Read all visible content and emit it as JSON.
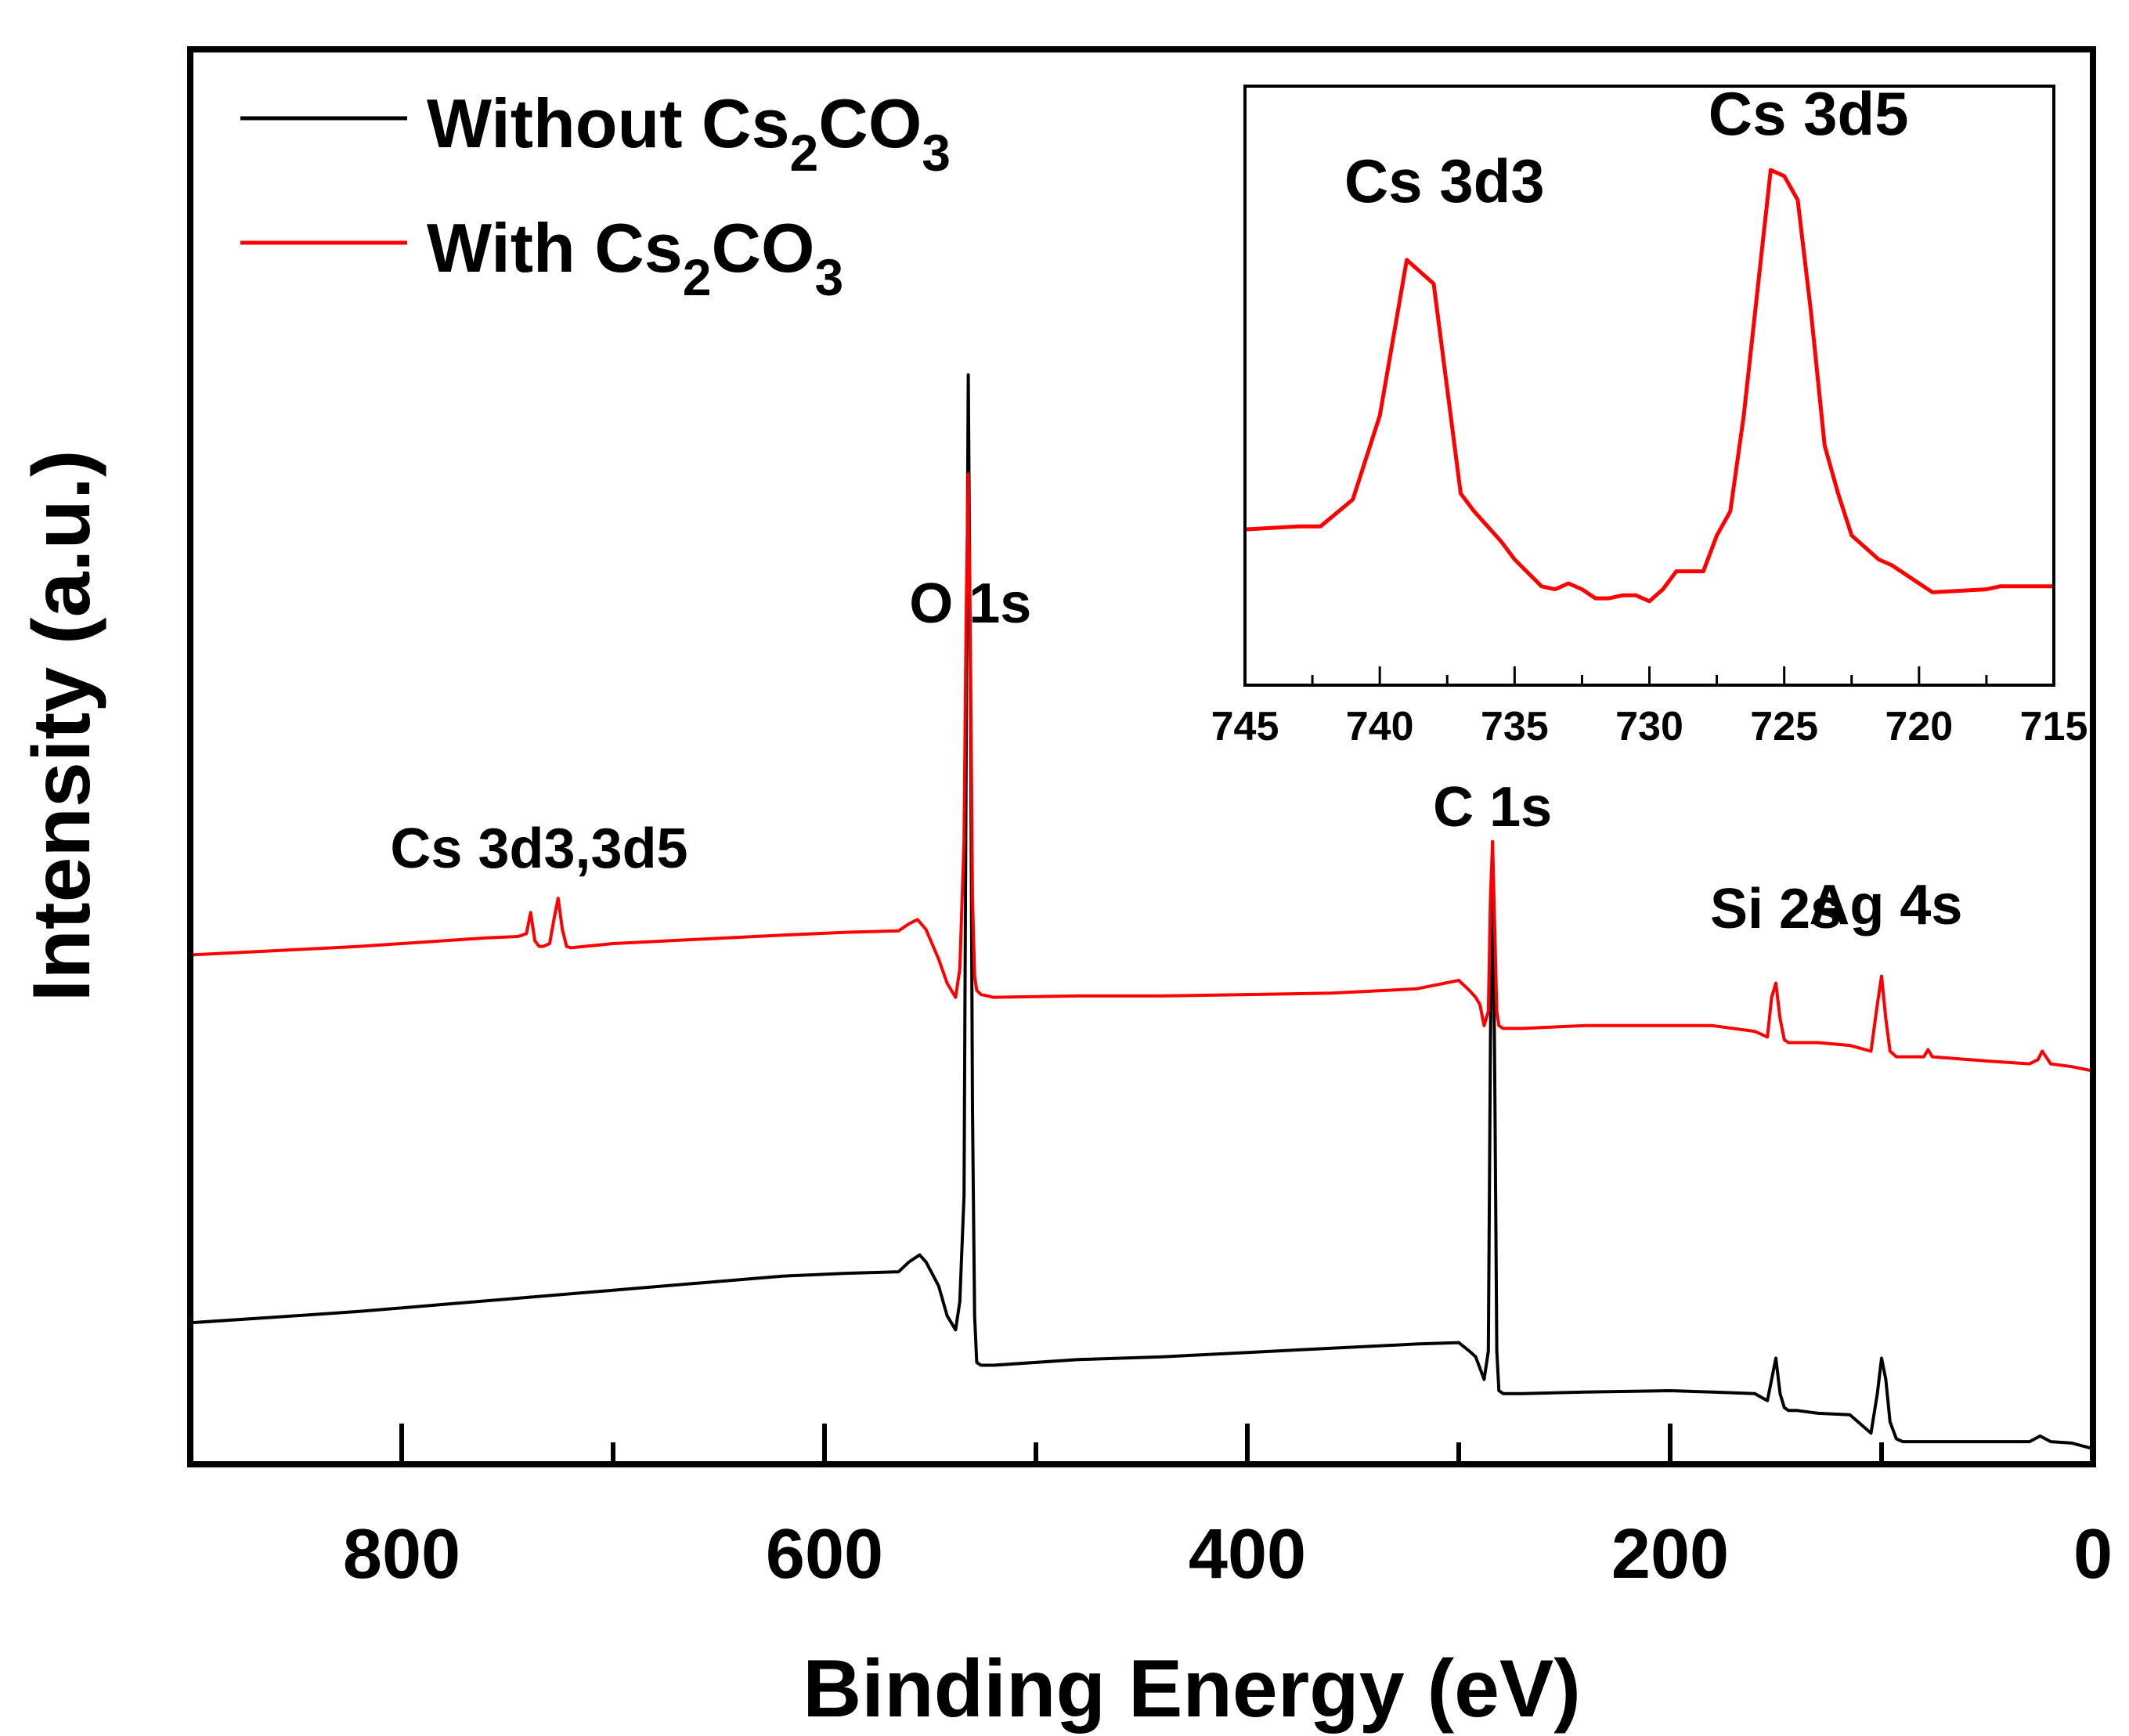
{
  "chart_data": [
    {
      "type": "line",
      "title": "",
      "xlabel": "Binding Energy (eV)",
      "ylabel": "Intensity (a.u.)",
      "xlim": [
        900,
        0
      ],
      "ylim": [
        0,
        100
      ],
      "x_ticks": [
        800,
        600,
        400,
        200,
        0
      ],
      "x_ticks_minor": [
        700,
        500,
        300,
        100
      ],
      "yticks_shown": false,
      "legend": {
        "placement": "top-left",
        "entries": [
          {
            "base": "Without Cs",
            "sub1": "2",
            "mid": "CO",
            "sub2": "3",
            "color": "#000000"
          },
          {
            "base": "With Cs",
            "sub1": "2",
            "mid": "CO",
            "sub2": "3",
            "color": "#ff0000"
          }
        ]
      },
      "annotations": [
        {
          "text": "Cs 3d3,3d5",
          "x": 735
        },
        {
          "text": "O 1s",
          "x": 531
        },
        {
          "text": "C 1s",
          "x": 284
        },
        {
          "text": "Si 2s",
          "x": 150
        },
        {
          "text": "Ag 4s",
          "x": 98
        }
      ],
      "series": [
        {
          "name": "Without Cs2CO3",
          "color": "#000000",
          "x": [
            900,
            860,
            820,
            780,
            740,
            700,
            660,
            620,
            590,
            565,
            560,
            555,
            552,
            546,
            542,
            538,
            536,
            534,
            533,
            532,
            531,
            530,
            529,
            528,
            526,
            520,
            480,
            440,
            400,
            360,
            320,
            300,
            295,
            292,
            290,
            288,
            286,
            285,
            284,
            283,
            282,
            281,
            279,
            276,
            270,
            240,
            200,
            180,
            160,
            154,
            152,
            150,
            148,
            146,
            144,
            140,
            130,
            115,
            105,
            102,
            100,
            98,
            96,
            93,
            90,
            80,
            50,
            30,
            25,
            20,
            10,
            0
          ],
          "y": [
            10.0,
            10.4,
            10.8,
            11.3,
            11.8,
            12.3,
            12.8,
            13.3,
            13.5,
            13.6,
            14.3,
            14.8,
            14.3,
            12.6,
            10.5,
            9.5,
            11.5,
            19.0,
            50.0,
            77.0,
            56.0,
            25.0,
            10.5,
            7.2,
            7.0,
            7.0,
            7.4,
            7.6,
            7.9,
            8.2,
            8.5,
            8.6,
            8.0,
            7.6,
            6.8,
            6.0,
            8.0,
            30.0,
            44.0,
            28.0,
            8.0,
            5.2,
            5.0,
            5.0,
            5.0,
            5.1,
            5.2,
            5.1,
            5.0,
            4.5,
            6.0,
            7.5,
            5.0,
            4.0,
            3.8,
            3.8,
            3.6,
            3.5,
            2.2,
            5.0,
            7.5,
            6.0,
            3.0,
            1.8,
            1.6,
            1.6,
            1.6,
            1.6,
            2.0,
            1.6,
            1.5,
            1.1
          ]
        },
        {
          "name": "With Cs2CO3",
          "color": "#ff0000",
          "x": [
            900,
            860,
            820,
            780,
            760,
            745,
            741,
            739,
            737,
            735,
            733,
            730,
            728,
            726,
            724,
            722,
            720,
            700,
            660,
            620,
            590,
            565,
            560,
            556,
            552,
            546,
            542,
            538,
            536,
            534,
            533,
            532,
            531,
            530,
            529,
            528,
            526,
            520,
            480,
            440,
            400,
            360,
            320,
            310,
            300,
            295,
            292,
            290,
            288,
            286,
            285,
            284,
            283,
            282,
            281,
            279,
            276,
            270,
            240,
            200,
            180,
            160,
            154,
            152,
            150,
            148,
            146,
            144,
            140,
            130,
            115,
            105,
            102,
            100,
            98,
            96,
            93,
            90,
            80,
            78,
            76,
            50,
            30,
            26,
            24,
            20,
            10,
            0
          ],
          "y": [
            36.0,
            36.3,
            36.6,
            37.0,
            37.2,
            37.3,
            37.5,
            39.0,
            37.0,
            36.6,
            36.6,
            36.8,
            38.5,
            40.0,
            37.8,
            36.6,
            36.5,
            36.8,
            37.1,
            37.4,
            37.6,
            37.7,
            38.2,
            38.5,
            37.8,
            35.7,
            34.0,
            33.0,
            35.0,
            44.0,
            60.0,
            70.0,
            58.0,
            40.0,
            34.5,
            33.5,
            33.2,
            33.0,
            33.1,
            33.1,
            33.2,
            33.3,
            33.6,
            33.9,
            34.2,
            33.5,
            33.0,
            32.5,
            31.0,
            32.0,
            40.0,
            44.0,
            38.0,
            32.0,
            31.0,
            30.8,
            30.8,
            30.8,
            31.0,
            31.0,
            31.0,
            30.6,
            30.2,
            33.0,
            34.0,
            31.5,
            30.0,
            29.8,
            29.8,
            29.8,
            29.6,
            29.2,
            32.5,
            34.5,
            31.5,
            29.2,
            28.8,
            28.8,
            28.8,
            29.3,
            28.8,
            28.5,
            28.3,
            28.6,
            29.2,
            28.3,
            28.1,
            27.8
          ]
        }
      ]
    },
    {
      "type": "line",
      "title": "",
      "xlabel": "",
      "ylabel": "",
      "xlim": [
        745,
        715
      ],
      "ylim": [
        0,
        100
      ],
      "x_ticks": [
        745,
        740,
        735,
        730,
        725,
        720,
        715
      ],
      "yticks_shown": false,
      "annotations": [
        {
          "text": "Cs 3d3",
          "x": 737.6
        },
        {
          "text": "Cs 3d5",
          "x": 724.1
        }
      ],
      "series": [
        {
          "name": "With Cs2CO3",
          "color": "#ff0000",
          "x": [
            745,
            743,
            742.2,
            741,
            740,
            739,
            738,
            737,
            736.5,
            735.5,
            735,
            734,
            733.5,
            733,
            732.5,
            732,
            731.5,
            731,
            730.5,
            730,
            729.5,
            729,
            728,
            727.5,
            727,
            726.5,
            725.5,
            725,
            724.5,
            724,
            723.5,
            723,
            722.5,
            722,
            721.5,
            721,
            720,
            719.5,
            717.5,
            717,
            716,
            715
          ],
          "y": [
            26.0,
            26.5,
            26.5,
            31.0,
            45.0,
            71.0,
            67.0,
            32.0,
            29.0,
            24.0,
            21.0,
            16.5,
            16.0,
            17.0,
            16.0,
            14.5,
            14.5,
            15.0,
            15.0,
            14.0,
            16.0,
            19.0,
            19.0,
            25.0,
            29.0,
            45.0,
            86.0,
            85.0,
            81.0,
            62.0,
            40.0,
            32.0,
            25.0,
            23.0,
            21.0,
            20.0,
            17.0,
            15.5,
            16.0,
            16.5,
            16.5,
            16.5
          ]
        }
      ]
    }
  ]
}
